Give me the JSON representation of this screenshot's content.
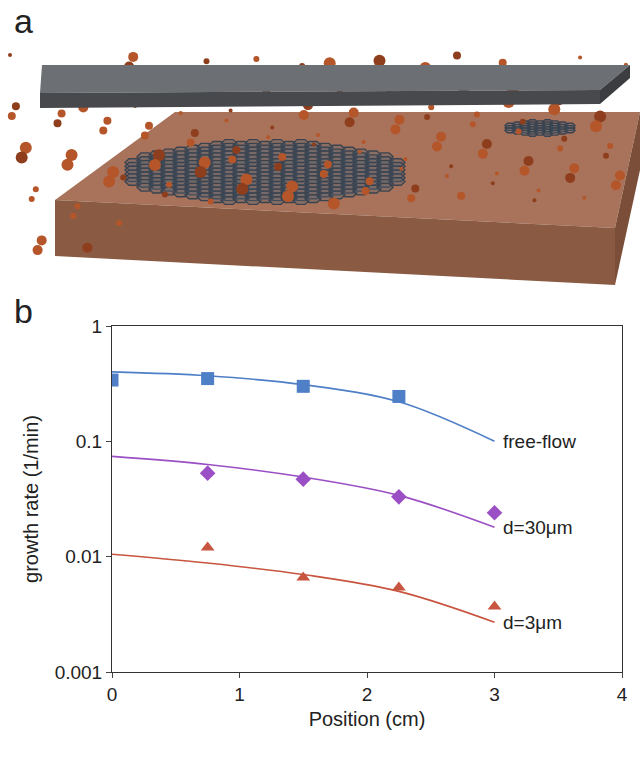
{
  "panel_labels": [
    "a",
    "b"
  ],
  "chart_data": {
    "type": "scatter",
    "x_label": "Position (cm)",
    "y_label": "growth rate (1/min)",
    "log": "y",
    "xlim": [
      0,
      4
    ],
    "xticks": [
      0,
      1,
      2,
      3,
      4
    ],
    "ylim": [
      0.001,
      1
    ],
    "yticks": [
      0.001,
      0.01,
      0.1,
      1
    ],
    "series": [
      {
        "name": "free-flow",
        "color": "#4f7fc6",
        "marker": "square",
        "x": [
          0,
          0.75,
          1.5,
          2.25
        ],
        "values": [
          0.34,
          0.35,
          0.3,
          0.245
        ],
        "fit_x": [
          0,
          0.75,
          1.5,
          2.25,
          3
        ],
        "fit_values": [
          0.4,
          0.37,
          0.31,
          0.22,
          0.1
        ]
      },
      {
        "name": "d=30μm",
        "color": "#9b4fc4",
        "marker": "diamond",
        "x": [
          0.75,
          1.5,
          2.25,
          3
        ],
        "values": [
          0.053,
          0.047,
          0.033,
          0.024
        ],
        "fit_x": [
          0,
          0.75,
          1.5,
          2.25,
          3
        ],
        "fit_values": [
          0.074,
          0.063,
          0.049,
          0.034,
          0.018
        ]
      },
      {
        "name": "d=3μm",
        "color": "#c8553f",
        "marker": "triangle-up",
        "x": [
          0.75,
          1.5,
          2.25,
          3
        ],
        "values": [
          0.012,
          0.0066,
          0.0054,
          0.0037
        ],
        "fit_x": [
          0,
          0.75,
          1.5,
          2.25,
          3
        ],
        "fit_values": [
          0.0105,
          0.0088,
          0.007,
          0.005,
          0.0027
        ]
      }
    ]
  }
}
